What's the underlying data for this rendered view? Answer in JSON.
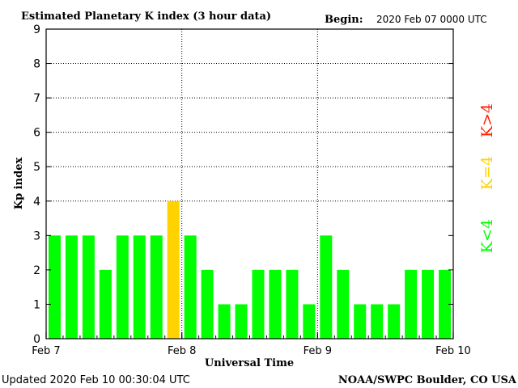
{
  "header": {
    "title": "Estimated Planetary K index (3 hour data)",
    "begin_label": "Begin:",
    "begin_value": "2020 Feb 07 0000 UTC"
  },
  "footer": {
    "updated": "Updated 2020 Feb 10 00:30:04 UTC",
    "source": "NOAA/SWPC Boulder, CO USA"
  },
  "legend": {
    "low": "K<4",
    "mid": "K=4",
    "high": "K>4",
    "low_color": "#00ff00",
    "mid_color": "#ffd200",
    "high_color": "#ff2200"
  },
  "chart_data": {
    "type": "bar",
    "title": "Estimated Planetary K index (3 hour data)",
    "xlabel": "Universal Time",
    "ylabel": "Kp index",
    "ylim": [
      0,
      9
    ],
    "yticks": [
      "0",
      "1",
      "2",
      "3",
      "4",
      "5",
      "6",
      "7",
      "8",
      "9"
    ],
    "xticks": [
      "Feb 7",
      "Feb 8",
      "Feb 9",
      "Feb 10"
    ],
    "values": [
      3,
      3,
      3,
      2,
      3,
      3,
      3,
      4,
      3,
      2,
      1,
      1,
      2,
      2,
      2,
      1,
      3,
      2,
      1,
      1,
      1,
      2,
      2,
      2
    ],
    "colors": {
      "below_4": "#00ff00",
      "equal_4": "#ffd200",
      "above_4": "#ff2200"
    },
    "grid": "dotted at x day boundaries and y 4,5,6,7,8"
  }
}
